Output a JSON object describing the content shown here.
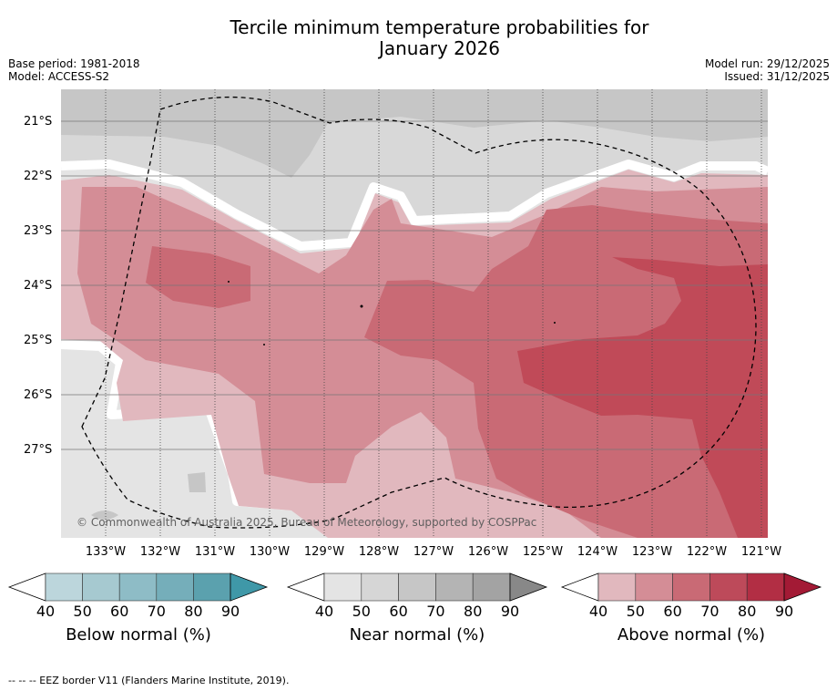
{
  "title": {
    "line1": "Tercile minimum temperature probabilities for",
    "line2": "January 2026"
  },
  "info_left": {
    "base_period": "Base period: 1981-2018",
    "model": "Model: ACCESS-S2"
  },
  "info_right": {
    "model_run": "Model run: 29/12/2025",
    "issued": "Issued: 31/12/2025"
  },
  "map": {
    "latitude_labels": [
      "21°S",
      "22°S",
      "23°S",
      "24°S",
      "25°S",
      "26°S",
      "27°S"
    ],
    "longitude_labels": [
      "133°W",
      "132°W",
      "131°W",
      "130°W",
      "129°W",
      "128°W",
      "127°W",
      "126°W",
      "125°W",
      "124°W",
      "123°W",
      "122°W",
      "121°W"
    ],
    "attribution": "© Commonwealth of Australia 2025, Bureau of Meteorology, supported by COSPPac",
    "colors": {
      "near_40": "#e4e4e4",
      "near_50": "#d8d8d8",
      "near_60": "#c6c6c6",
      "above_40": "#e1b8be",
      "above_50": "#d48d96",
      "above_60": "#c96a75",
      "above_70": "#c04a58",
      "eez_line": "#000000"
    }
  },
  "colorbars": [
    {
      "name": "below-normal",
      "title": "Below normal (%)",
      "ticks": [
        "40",
        "50",
        "60",
        "70",
        "80",
        "90"
      ],
      "colors": [
        "#bcd6dc",
        "#a6c9d0",
        "#8ebcc6",
        "#75aeba",
        "#5ba1ae",
        "#3f98a8"
      ]
    },
    {
      "name": "near-normal",
      "title": "Near normal (%)",
      "ticks": [
        "40",
        "50",
        "60",
        "70",
        "80",
        "90"
      ],
      "colors": [
        "#e4e4e4",
        "#d6d6d6",
        "#c6c6c6",
        "#b4b4b4",
        "#a3a3a3",
        "#888888"
      ]
    },
    {
      "name": "above-normal",
      "title": "Above normal (%)",
      "ticks": [
        "40",
        "50",
        "60",
        "70",
        "80",
        "90"
      ],
      "colors": [
        "#e1b8be",
        "#d48d96",
        "#c96a75",
        "#bd4a5a",
        "#b22e44",
        "#a31a35"
      ]
    }
  ],
  "footnote": "--  --  -- EEZ border V11 (Flanders Marine Institute, 2019)."
}
